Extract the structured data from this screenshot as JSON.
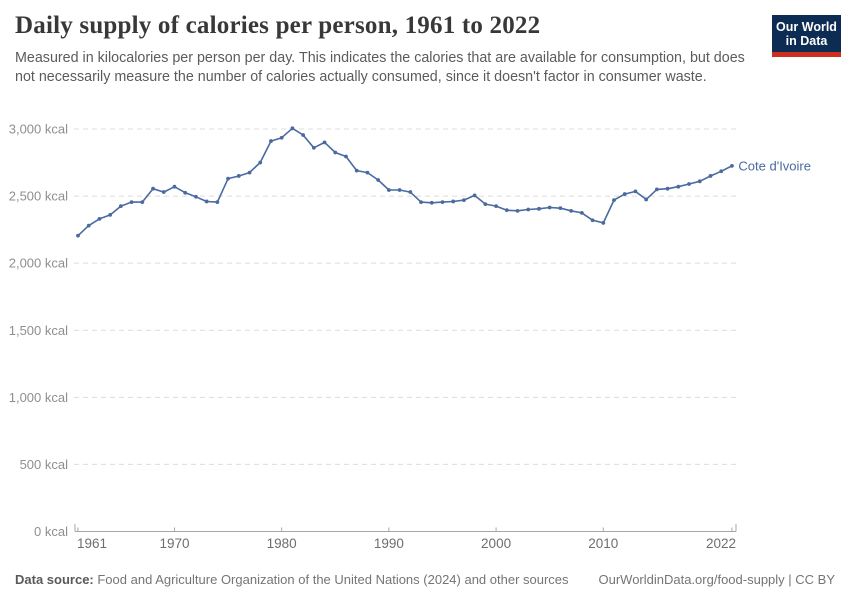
{
  "header": {
    "title": "Daily supply of calories per person, 1961 to 2022",
    "subtitle": "Measured in kilocalories per person per day. This indicates the calories that are available for consumption, but does not necessarily measure the number of calories actually consumed, since it doesn't factor in consumer waste."
  },
  "logo": {
    "line1": "Our World",
    "line2": "in Data",
    "bg_color": "#0d2c54",
    "accent_color": "#cf2d1e"
  },
  "chart_data": {
    "type": "line",
    "title": "Daily supply of calories per person, 1961 to 2022",
    "entity_label": "Cote d'Ivoire",
    "line_color": "#4a6aa0",
    "grid": "horizontal dashed",
    "legend_position": "end-of-line label",
    "xlabel": "",
    "ylabel": "",
    "y_unit": " kcal",
    "xlim": [
      1961,
      2022
    ],
    "ylim": [
      0,
      3000
    ],
    "x_ticks": [
      1961,
      1970,
      1980,
      1990,
      2000,
      2010,
      2022
    ],
    "y_ticks": [
      0,
      500,
      1000,
      1500,
      2000,
      2500,
      3000
    ],
    "x": [
      1961,
      1962,
      1963,
      1964,
      1965,
      1966,
      1967,
      1968,
      1969,
      1970,
      1971,
      1972,
      1973,
      1974,
      1975,
      1976,
      1977,
      1978,
      1979,
      1980,
      1981,
      1982,
      1983,
      1984,
      1985,
      1986,
      1987,
      1988,
      1989,
      1990,
      1991,
      1992,
      1993,
      1994,
      1995,
      1996,
      1997,
      1998,
      1999,
      2000,
      2001,
      2002,
      2003,
      2004,
      2005,
      2006,
      2007,
      2008,
      2009,
      2010,
      2011,
      2012,
      2013,
      2014,
      2015,
      2016,
      2017,
      2018,
      2019,
      2020,
      2021,
      2022
    ],
    "values": [
      2205,
      2280,
      2330,
      2360,
      2425,
      2455,
      2455,
      2555,
      2530,
      2570,
      2525,
      2495,
      2460,
      2455,
      2630,
      2650,
      2675,
      2750,
      2910,
      2935,
      3005,
      2955,
      2860,
      2900,
      2825,
      2795,
      2690,
      2675,
      2620,
      2545,
      2545,
      2530,
      2455,
      2450,
      2455,
      2460,
      2470,
      2505,
      2440,
      2425,
      2395,
      2390,
      2400,
      2405,
      2415,
      2410,
      2390,
      2375,
      2320,
      2300,
      2470,
      2515,
      2535,
      2475,
      2550,
      2555,
      2570,
      2590,
      2610,
      2650,
      2685,
      2725
    ]
  },
  "footer": {
    "data_source_label": "Data source:",
    "data_source_text": " Food and Agriculture Organization of the United Nations (2024) and other sources",
    "link_text": "OurWorldinData.org/food-supply | CC BY"
  }
}
